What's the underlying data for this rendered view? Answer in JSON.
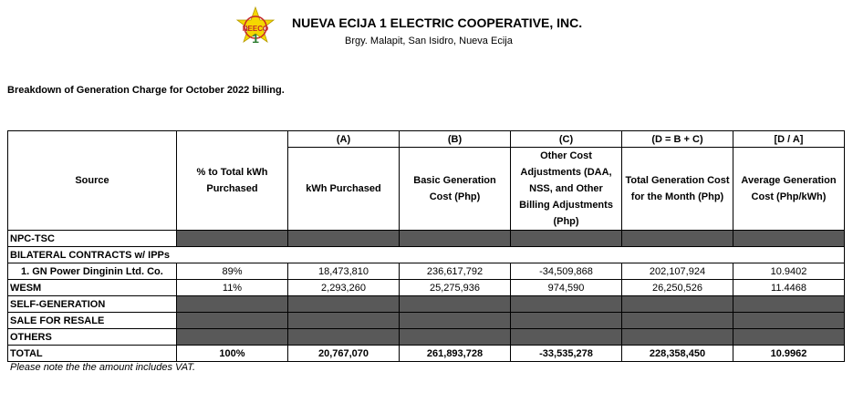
{
  "header": {
    "company": "NUEVA ECIJA 1 ELECTRIC COOPERATIVE, INC.",
    "address": "Brgy. Malapit, San Isidro, Nueva Ecija",
    "logo_text": "NEECO"
  },
  "breakdown_title": "Breakdown of Generation Charge  for October 2022 billing.",
  "table": {
    "codes": [
      "(A)",
      "(B)",
      "(C)",
      "(D = B + C)",
      "[D / A]"
    ],
    "headers": [
      "Source",
      "% to Total kWh Purchased",
      "kWh Purchased",
      "Basic Generation Cost (Php)",
      "Other Cost Adjustments (DAA, NSS, and Other Billing Adjustments (Php)",
      "Total Generation Cost for the Month (Php)",
      "Average Generation Cost (Php/kWh)"
    ],
    "npc": "NPC-TSC",
    "bilateral": "BILATERAL CONTRACTS w/ IPPs",
    "gn": {
      "source": "1. GN Power Dinginin Ltd. Co.",
      "pct": "89%",
      "kwh": "18,473,810",
      "basic": "236,617,792",
      "other": "-34,509,868",
      "total": "202,107,924",
      "avg": "10.9402"
    },
    "wesm": {
      "source": "WESM",
      "pct": "11%",
      "kwh": "2,293,260",
      "basic": "25,275,936",
      "other": "974,590",
      "total": "26,250,526",
      "avg": "11.4468"
    },
    "self_gen": "SELF-GENERATION",
    "resale": "SALE FOR RESALE",
    "others": "OTHERS",
    "total": {
      "source": "TOTAL",
      "pct": "100%",
      "kwh": "20,767,070",
      "basic": "261,893,728",
      "other": "-33,535,278",
      "total": "228,358,450",
      "avg": "10.9962"
    }
  },
  "note": "Please note the the amount includes VAT.",
  "colors": {
    "shaded_cell": "#595959",
    "logo_yellow": "#f5d800",
    "logo_green": "#2e7d32",
    "logo_red": "#c62828"
  }
}
